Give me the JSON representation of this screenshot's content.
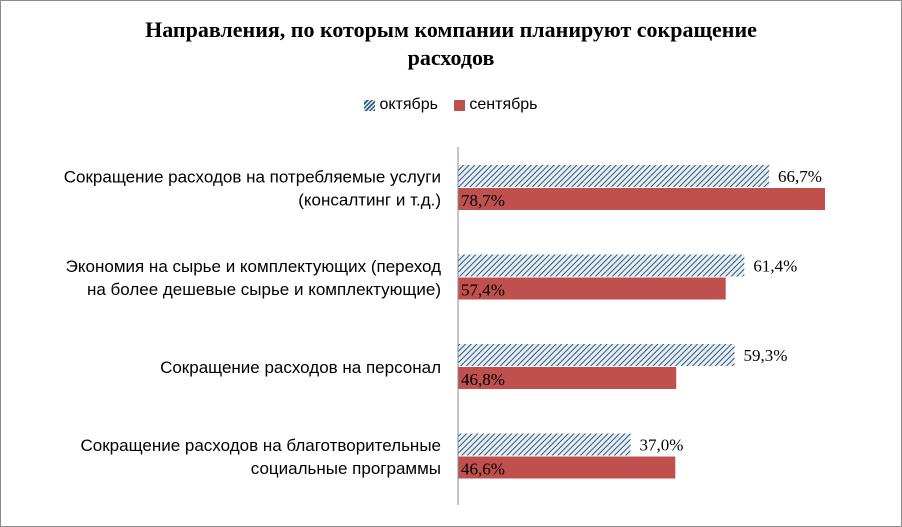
{
  "chart_data": {
    "type": "bar",
    "orientation": "horizontal",
    "title": "Направления, по которым компании планируют сокращение расходов",
    "title_lines": [
      "Направления, по которым компании планируют сокращение",
      "расходов"
    ],
    "categories": [
      [
        "Сокращение расходов на потребляемые услуги",
        "(консалтинг и т.д.)"
      ],
      [
        "Экономия на сырье и комплектующих (переход",
        "на более дешевые сырье и комплектующие)"
      ],
      [
        "Сокращение расходов на персонал"
      ],
      [
        "Сокращение расходов на благотворительные",
        "социальные программы"
      ]
    ],
    "series": [
      {
        "name": "октябрь",
        "values": [
          66.7,
          61.4,
          59.3,
          37.0
        ],
        "labels": [
          "66,7%",
          "61,4%",
          "59,3%",
          "37,0%"
        ],
        "color": "#2b5a7e",
        "pattern": "diagonal-hatch"
      },
      {
        "name": "сентябрь",
        "values": [
          78.7,
          57.4,
          46.8,
          46.6
        ],
        "labels": [
          "78,7%",
          "57,4%",
          "46,8%",
          "46,6%"
        ],
        "color": "#c0504d",
        "pattern": "solid"
      }
    ],
    "xlim": [
      0,
      100
    ],
    "grid": false,
    "legend_position": "top"
  }
}
